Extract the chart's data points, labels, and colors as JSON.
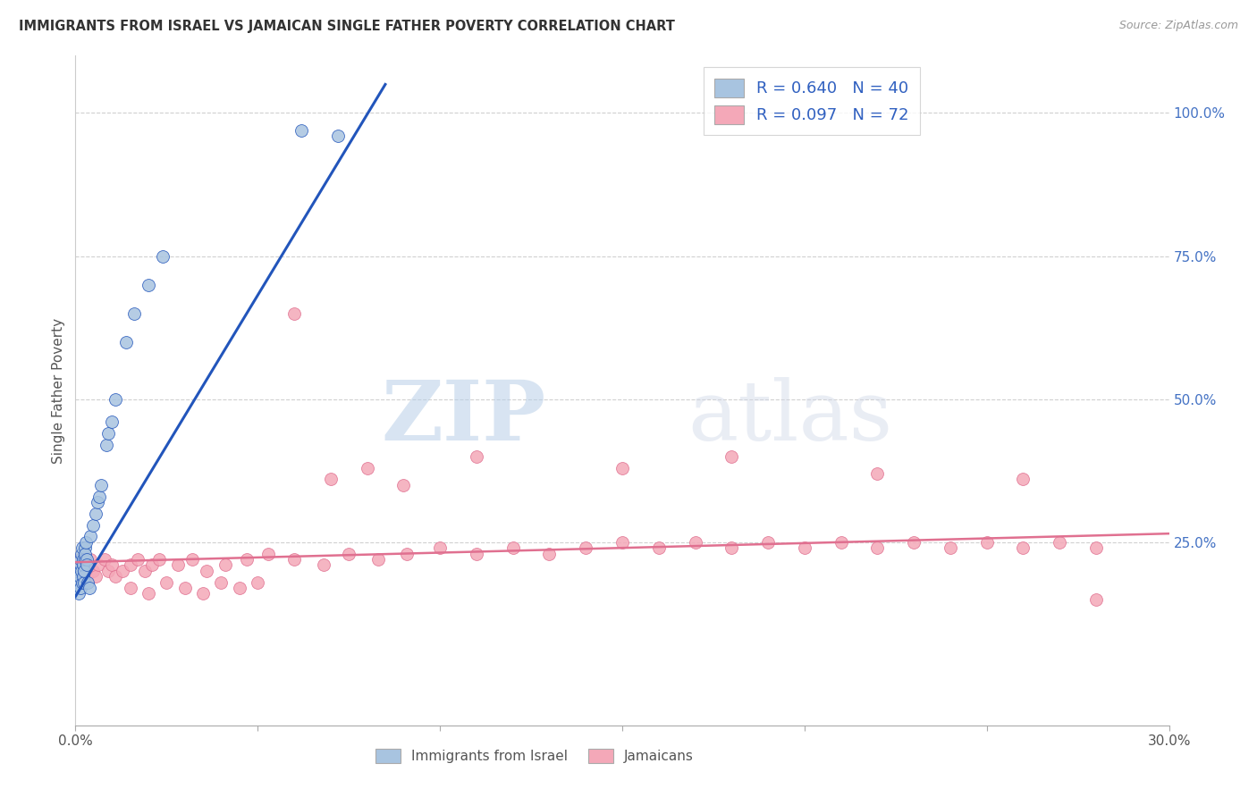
{
  "title": "IMMIGRANTS FROM ISRAEL VS JAMAICAN SINGLE FATHER POVERTY CORRELATION CHART",
  "source": "Source: ZipAtlas.com",
  "ylabel": "Single Father Poverty",
  "right_yticks": [
    "100.0%",
    "75.0%",
    "50.0%",
    "25.0%"
  ],
  "right_ytick_vals": [
    1.0,
    0.75,
    0.5,
    0.25
  ],
  "xlim": [
    0.0,
    0.3
  ],
  "ylim": [
    -0.07,
    1.1
  ],
  "color_israel": "#a8c4e0",
  "color_jamaican": "#f4a8b8",
  "line_color_israel": "#2255bb",
  "line_color_jamaican": "#e07090",
  "watermark_zip": "ZIP",
  "watermark_atlas": "atlas",
  "background_color": "#ffffff",
  "grid_color": "#d0d0d0",
  "israel_x": [
    0.0008,
    0.001,
    0.0011,
    0.0012,
    0.0013,
    0.0014,
    0.0015,
    0.0016,
    0.0017,
    0.0018,
    0.0019,
    0.002,
    0.0021,
    0.0022,
    0.0023,
    0.0024,
    0.0025,
    0.0026,
    0.0027,
    0.0028,
    0.003,
    0.0032,
    0.0034,
    0.0038,
    0.0042,
    0.0048,
    0.0055,
    0.006,
    0.0065,
    0.007,
    0.0085,
    0.009,
    0.01,
    0.011,
    0.014,
    0.016,
    0.02,
    0.024,
    0.062,
    0.072
  ],
  "israel_y": [
    0.18,
    0.16,
    0.2,
    0.19,
    0.17,
    0.21,
    0.22,
    0.23,
    0.2,
    0.18,
    0.24,
    0.22,
    0.21,
    0.19,
    0.18,
    0.2,
    0.24,
    0.22,
    0.23,
    0.25,
    0.22,
    0.21,
    0.18,
    0.17,
    0.26,
    0.28,
    0.3,
    0.32,
    0.33,
    0.35,
    0.42,
    0.44,
    0.46,
    0.5,
    0.6,
    0.65,
    0.7,
    0.75,
    0.97,
    0.96
  ],
  "jamaican_x": [
    0.001,
    0.0012,
    0.0014,
    0.0016,
    0.0018,
    0.002,
    0.0022,
    0.0024,
    0.0028,
    0.0032,
    0.0036,
    0.004,
    0.0048,
    0.0056,
    0.0064,
    0.008,
    0.009,
    0.01,
    0.011,
    0.013,
    0.015,
    0.017,
    0.019,
    0.021,
    0.023,
    0.028,
    0.032,
    0.036,
    0.041,
    0.047,
    0.053,
    0.06,
    0.068,
    0.075,
    0.083,
    0.091,
    0.1,
    0.11,
    0.12,
    0.13,
    0.14,
    0.15,
    0.16,
    0.17,
    0.18,
    0.19,
    0.2,
    0.21,
    0.22,
    0.23,
    0.24,
    0.25,
    0.26,
    0.27,
    0.28,
    0.015,
    0.02,
    0.025,
    0.03,
    0.035,
    0.04,
    0.045,
    0.05,
    0.06,
    0.07,
    0.08,
    0.09,
    0.11,
    0.15,
    0.18,
    0.22,
    0.26,
    0.28
  ],
  "jamaican_y": [
    0.22,
    0.2,
    0.19,
    0.21,
    0.18,
    0.22,
    0.2,
    0.21,
    0.2,
    0.19,
    0.21,
    0.22,
    0.2,
    0.19,
    0.21,
    0.22,
    0.2,
    0.21,
    0.19,
    0.2,
    0.21,
    0.22,
    0.2,
    0.21,
    0.22,
    0.21,
    0.22,
    0.2,
    0.21,
    0.22,
    0.23,
    0.22,
    0.21,
    0.23,
    0.22,
    0.23,
    0.24,
    0.23,
    0.24,
    0.23,
    0.24,
    0.25,
    0.24,
    0.25,
    0.24,
    0.25,
    0.24,
    0.25,
    0.24,
    0.25,
    0.24,
    0.25,
    0.24,
    0.25,
    0.24,
    0.17,
    0.16,
    0.18,
    0.17,
    0.16,
    0.18,
    0.17,
    0.18,
    0.65,
    0.36,
    0.38,
    0.35,
    0.4,
    0.38,
    0.4,
    0.37,
    0.36,
    0.15
  ],
  "israel_line_x": [
    0.0,
    0.085
  ],
  "israel_line_y": [
    0.155,
    1.05
  ],
  "jamaican_line_x": [
    0.0,
    0.3
  ],
  "jamaican_line_y": [
    0.215,
    0.265
  ]
}
